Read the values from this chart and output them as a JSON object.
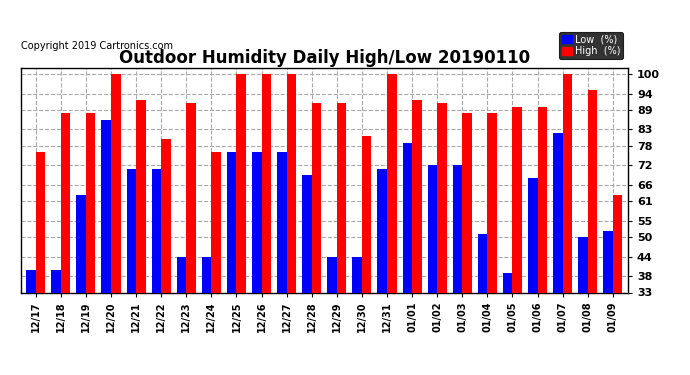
{
  "title": "Outdoor Humidity Daily High/Low 20190110",
  "copyright": "Copyright 2019 Cartronics.com",
  "categories": [
    "12/17",
    "12/18",
    "12/19",
    "12/20",
    "12/21",
    "12/22",
    "12/23",
    "12/24",
    "12/25",
    "12/26",
    "12/27",
    "12/28",
    "12/29",
    "12/30",
    "12/31",
    "01/01",
    "01/02",
    "01/03",
    "01/04",
    "01/05",
    "01/06",
    "01/07",
    "01/08",
    "01/09"
  ],
  "high_values": [
    76,
    88,
    88,
    100,
    92,
    80,
    91,
    76,
    100,
    100,
    100,
    91,
    91,
    81,
    100,
    92,
    91,
    88,
    88,
    90,
    90,
    100,
    95,
    63
  ],
  "low_values": [
    40,
    40,
    63,
    86,
    71,
    71,
    44,
    44,
    76,
    76,
    76,
    69,
    44,
    44,
    71,
    79,
    72,
    72,
    51,
    39,
    68,
    82,
    50,
    52
  ],
  "bar_width": 0.38,
  "ymin": 33,
  "ymax": 100,
  "yticks": [
    33,
    38,
    44,
    50,
    55,
    61,
    66,
    72,
    78,
    83,
    89,
    94,
    100
  ],
  "high_color": "#ff0000",
  "low_color": "#0000ff",
  "bg_color": "#ffffff",
  "grid_color": "#aaaaaa",
  "title_fontsize": 12,
  "copyright_fontsize": 7,
  "legend_low_label": "Low  (%)",
  "legend_high_label": "High  (%)"
}
